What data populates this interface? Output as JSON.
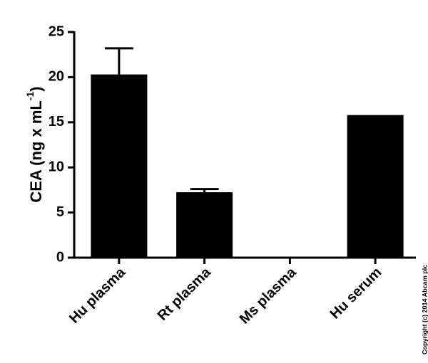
{
  "chart_data": {
    "type": "bar",
    "categories": [
      "Hu plasma",
      "Rt plasma",
      "Ms plasma",
      "Hu serum"
    ],
    "values": [
      20.3,
      7.25,
      0,
      15.8
    ],
    "errors": [
      2.9,
      0.35,
      null,
      null
    ],
    "color": "#000000",
    "ylim": [
      0,
      25
    ],
    "yticks": [
      0,
      5,
      10,
      15,
      20,
      25
    ],
    "ylabel": {
      "text": "CEA (ng x mL",
      "sup": "-1",
      "end": ")"
    },
    "annotation": "Copyright (c) 2014 Abcam plc"
  }
}
